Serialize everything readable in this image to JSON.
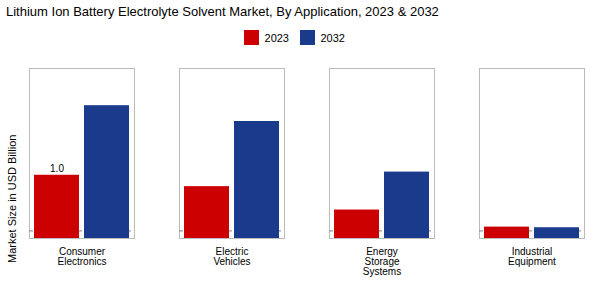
{
  "chart_data": {
    "type": "bar",
    "title": "Lithium Ion Battery Electrolyte Solvent Market, By Application, 2023 & 2032",
    "ylabel": "Market Size in USD Billion",
    "categories": [
      "Consumer\nElectronics",
      "Electric\nVehicles",
      "Energy\nStorage\nSystems",
      "Industrial\nEquipment"
    ],
    "series": [
      {
        "name": "2023",
        "color": "#cc0000",
        "values": [
          1.0,
          0.82,
          0.45,
          0.18
        ]
      },
      {
        "name": "2032",
        "color": "#1a3a8c",
        "values": [
          2.1,
          1.85,
          1.05,
          0.17
        ]
      }
    ],
    "annotations": [
      {
        "text": "1.0",
        "x": "Consumer\nElectronics",
        "series": "2023",
        "y": 1.0
      }
    ],
    "reference_lines": [
      {
        "y": 0.12,
        "color": "gray",
        "line_style": "dashed"
      }
    ],
    "ylim": [
      0,
      2.688
    ],
    "yticks": [],
    "tick_labels": "x",
    "grid": false,
    "legend": "top"
  }
}
